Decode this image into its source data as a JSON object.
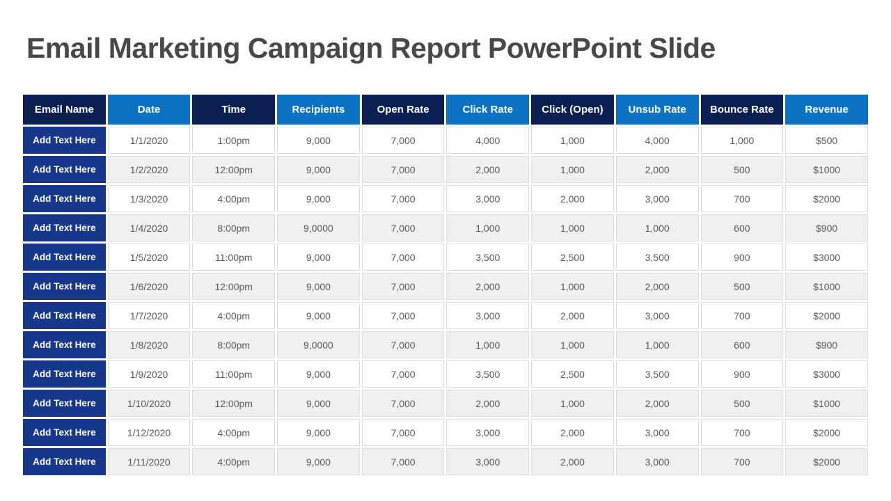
{
  "slide": {
    "title": "Email Marketing Campaign Report PowerPoint Slide"
  },
  "colors": {
    "title_text": "#484848",
    "header_dark_navy": "#0b1f52",
    "header_medium_blue": "#0b72c4",
    "row_label_blue": "#17378d",
    "row_white": "#ffffff",
    "row_alt_gray": "#f0f0f0",
    "cell_border": "#dbdbdb",
    "cell_text": "#595959",
    "header_text": "#ffffff"
  },
  "table": {
    "columns": [
      "Email Name",
      "Date",
      "Time",
      "Recipients",
      "Open Rate",
      "Click Rate",
      "Click (Open)",
      "Unsub Rate",
      "Bounce Rate",
      "Revenue"
    ],
    "rows": [
      {
        "label": "Add Text Here",
        "cells": [
          "1/1/2020",
          "1:00pm",
          "9,000",
          "7,000",
          "4,000",
          "1,000",
          "4,000",
          "1,000",
          "$500"
        ]
      },
      {
        "label": "Add Text Here",
        "cells": [
          "1/2/2020",
          "12:00pm",
          "9,000",
          "7,000",
          "2,000",
          "1,000",
          "2,000",
          "500",
          "$1000"
        ]
      },
      {
        "label": "Add Text Here",
        "cells": [
          "1/3/2020",
          "4:00pm",
          "9,000",
          "7,000",
          "3,000",
          "2,000",
          "3,000",
          "700",
          "$2000"
        ]
      },
      {
        "label": "Add Text Here",
        "cells": [
          "1/4/2020",
          "8:00pm",
          "9,0000",
          "7,000",
          "1,000",
          "1,000",
          "1,000",
          "600",
          "$900"
        ]
      },
      {
        "label": "Add Text Here",
        "cells": [
          "1/5/2020",
          "11:00pm",
          "9,000",
          "7,000",
          "3,500",
          "2,500",
          "3,500",
          "900",
          "$3000"
        ]
      },
      {
        "label": "Add Text Here",
        "cells": [
          "1/6/2020",
          "12:00pm",
          "9,000",
          "7,000",
          "2,000",
          "1,000",
          "2,000",
          "500",
          "$1000"
        ]
      },
      {
        "label": "Add Text Here",
        "cells": [
          "1/7/2020",
          "4:00pm",
          "9,000",
          "7,000",
          "3,000",
          "2,000",
          "3,000",
          "700",
          "$2000"
        ]
      },
      {
        "label": "Add Text Here",
        "cells": [
          "1/8/2020",
          "8:00pm",
          "9,0000",
          "7,000",
          "1,000",
          "1,000",
          "1,000",
          "600",
          "$900"
        ]
      },
      {
        "label": "Add Text Here",
        "cells": [
          "1/9/2020",
          "11:00pm",
          "9,000",
          "7,000",
          "3,500",
          "2,500",
          "3,500",
          "900",
          "$3000"
        ]
      },
      {
        "label": "Add Text Here",
        "cells": [
          "1/10/2020",
          "12:00pm",
          "9,000",
          "7,000",
          "2,000",
          "1,000",
          "2,000",
          "500",
          "$1000"
        ]
      },
      {
        "label": "Add Text Here",
        "cells": [
          "1/12/2020",
          "4:00pm",
          "9,000",
          "7,000",
          "3,000",
          "2,000",
          "3,000",
          "700",
          "$2000"
        ]
      },
      {
        "label": "Add Text Here",
        "cells": [
          "1/11/2020",
          "4:00pm",
          "9,000",
          "7,000",
          "3,000",
          "2,000",
          "3,000",
          "700",
          "$2000"
        ]
      }
    ]
  }
}
